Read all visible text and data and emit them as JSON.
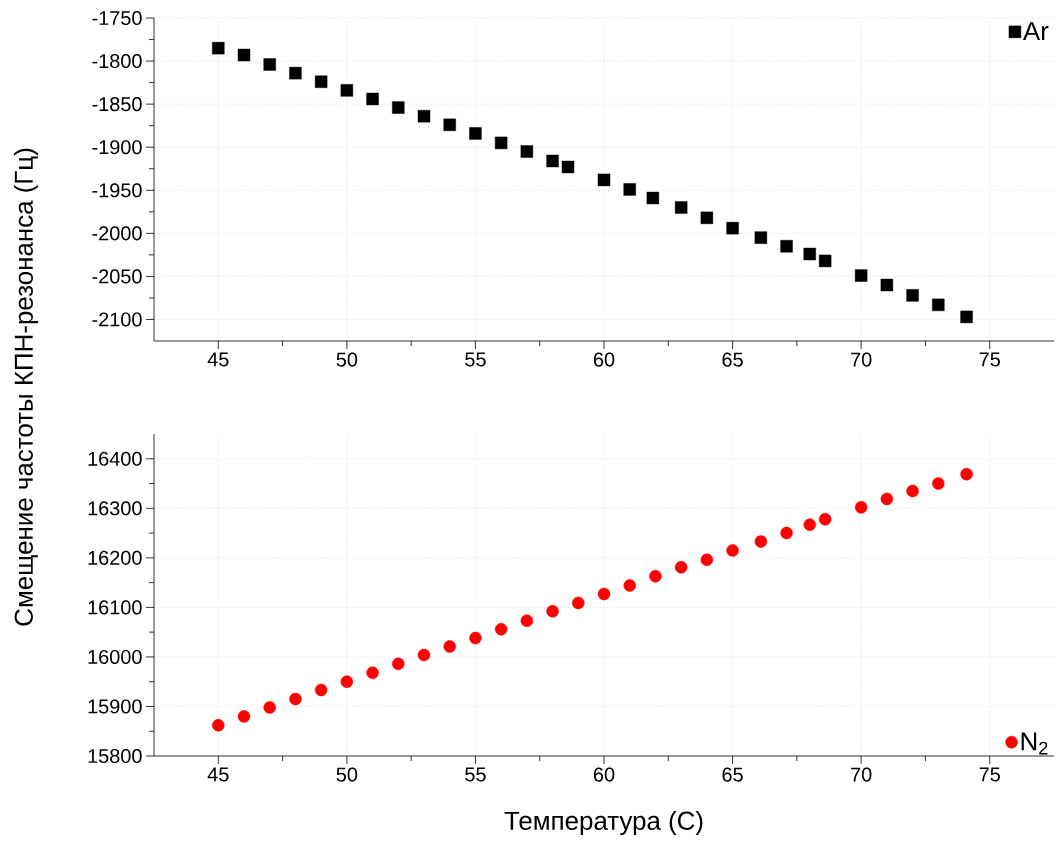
{
  "chart_data": [
    {
      "type": "scatter",
      "ylabel": "Смещение частоты КПН-резонанса (Гц)",
      "x": [
        45,
        46,
        47,
        48,
        49,
        50,
        51,
        52,
        53,
        54,
        55,
        56,
        57,
        58,
        58.6,
        60,
        61,
        61.9,
        63,
        64,
        65,
        66.1,
        67.1,
        68,
        68.6,
        70,
        71,
        72,
        73,
        74.1
      ],
      "series": [
        {
          "name": "Ar",
          "color": "#000000",
          "values": [
            -1785,
            -1793,
            -1804,
            -1814,
            -1824,
            -1834,
            -1844,
            -1854,
            -1864,
            -1874,
            -1884,
            -1895,
            -1905,
            -1916,
            -1923,
            -1938,
            -1949,
            -1959,
            -1970,
            -1982,
            -1994,
            -2005,
            -2015,
            -2024,
            -2032,
            -2049,
            -2060,
            -2072,
            -2083,
            -2097
          ]
        }
      ],
      "marker": "square",
      "grid": true,
      "legend": "top right",
      "xlim": [
        42.5,
        77.5
      ],
      "xticks": [
        45,
        50,
        55,
        60,
        65,
        70,
        75
      ],
      "ylim": [
        -2125,
        -1750
      ],
      "yticks": [
        -2100,
        -2050,
        -2000,
        -1950,
        -1900,
        -1850,
        -1800,
        -1750
      ]
    },
    {
      "type": "scatter",
      "xlabel": "Температура (С)",
      "x": [
        45,
        46,
        47,
        48,
        49,
        50,
        51,
        52,
        53,
        54,
        55,
        56,
        57,
        58,
        59,
        60,
        61,
        62,
        63,
        64,
        65,
        66.1,
        67.1,
        68,
        68.6,
        70,
        71,
        72,
        73,
        74.1
      ],
      "series": [
        {
          "name": "N$_{2}$",
          "color": "#ff0000",
          "values": [
            15862,
            15880,
            15898,
            15915,
            15933,
            15950,
            15968,
            15986,
            16004,
            16021,
            16038,
            16056,
            16073,
            16092,
            16109,
            16127,
            16144,
            16163,
            16181,
            16196,
            16215,
            16233,
            16250,
            16267,
            16278,
            16302,
            16319,
            16335,
            16350,
            16369
          ]
        }
      ],
      "marker": "circle",
      "grid": true,
      "legend": "bottom right",
      "xlim": [
        42.5,
        77.5
      ],
      "xticks": [
        45,
        50,
        55,
        60,
        65,
        70,
        75
      ],
      "ylim": [
        15800,
        16450
      ],
      "yticks": [
        15800,
        15900,
        16000,
        16100,
        16200,
        16300,
        16400
      ]
    }
  ]
}
